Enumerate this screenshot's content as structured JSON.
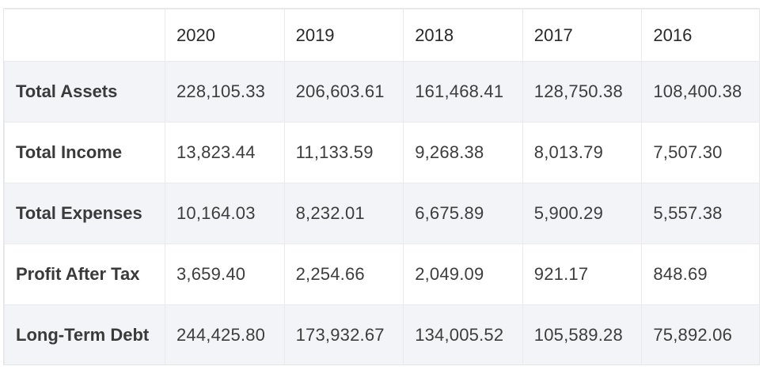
{
  "table": {
    "columns": [
      "",
      "2020",
      "2019",
      "2018",
      "2017",
      "2016"
    ],
    "rows": [
      {
        "label": "Total Assets",
        "values": [
          "228,105.33",
          "206,603.61",
          "161,468.41",
          "128,750.38",
          "108,400.38"
        ]
      },
      {
        "label": "Total Income",
        "values": [
          "13,823.44",
          "11,133.59",
          "9,268.38",
          "8,013.79",
          "7,507.30"
        ]
      },
      {
        "label": "Total Expenses",
        "values": [
          "10,164.03",
          "8,232.01",
          "6,675.89",
          "5,900.29",
          "5,557.38"
        ]
      },
      {
        "label": "Profit After Tax",
        "values": [
          "3,659.40",
          "2,254.66",
          "2,049.09",
          "921.17",
          "848.69"
        ]
      },
      {
        "label": "Long-Term Debt",
        "values": [
          "244,425.80",
          "173,932.67",
          "134,005.52",
          "105,589.28",
          "75,892.06"
        ]
      }
    ]
  }
}
